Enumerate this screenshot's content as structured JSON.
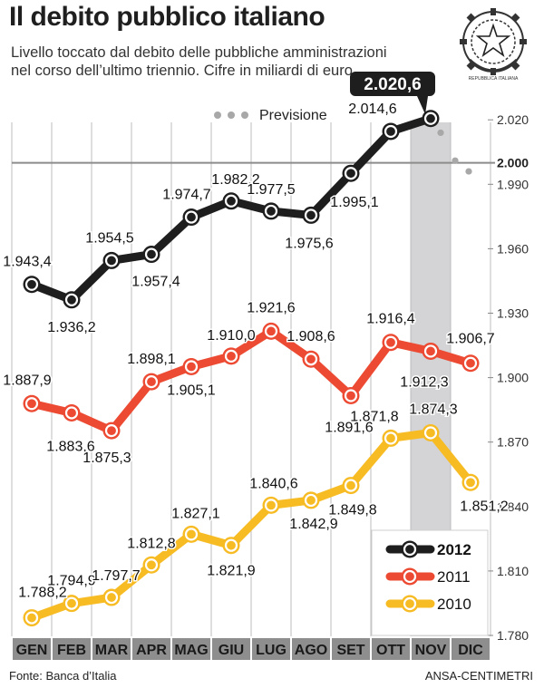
{
  "header": {
    "title": "Il debito pubblico italiano",
    "subtitle": "Livello toccato dal debito delle pubbliche amministrazioni nel corso dell’ultimo triennio. Cifre in miliardi di euro",
    "emblem_text": "REPUBBLICA ITALIANA"
  },
  "footer": {
    "source": "Fonte: Banca d’Italia",
    "credit": "ANSA-CENTIMETRI"
  },
  "chart_data": {
    "type": "line",
    "title": "Il debito pubblico italiano",
    "ylabel": "",
    "xlabel": "",
    "categories": [
      "GEN",
      "FEB",
      "MAR",
      "APR",
      "MAG",
      "GIU",
      "LUG",
      "AGO",
      "SET",
      "OTT",
      "NOV",
      "DIC"
    ],
    "y_ticks": [
      1780,
      1810,
      1840,
      1870,
      1900,
      1930,
      1960,
      1990,
      2020
    ],
    "y_tick_labels": [
      "1.780",
      "1.810",
      "1.840",
      "1.870",
      "1.900",
      "1.930",
      "1.960",
      "1.990",
      "2.020"
    ],
    "reference_line": {
      "value": 2000,
      "label": "2.000"
    },
    "highlight_month": "NOV",
    "forecast": {
      "label": "Previsione",
      "points": [
        2014.0,
        2001.0,
        1996.0
      ]
    },
    "series": [
      {
        "name": "2012",
        "color": "#1e1e1e",
        "values": [
          1943.4,
          1936.2,
          1954.5,
          1957.4,
          1974.7,
          1982.2,
          1977.5,
          1975.6,
          1995.1,
          2014.6,
          2020.6,
          null
        ],
        "labels": [
          "1.943,4",
          "1.936,2",
          "1.954,5",
          "1.957,4",
          "1.974,7",
          "1.982,2",
          "1.977,5",
          "1.975,6",
          "1.995,1",
          "2.014,6",
          "2.020,6",
          ""
        ]
      },
      {
        "name": "2011",
        "color": "#ec4a32",
        "values": [
          1887.9,
          1883.6,
          1875.3,
          1898.1,
          1905.1,
          1910.0,
          1921.6,
          1908.6,
          1891.6,
          1916.4,
          1912.3,
          1906.7
        ],
        "labels": [
          "1.887,9",
          "1.883,6",
          "1.875,3",
          "1.898,1",
          "1.905,1",
          "1.910,0",
          "1.921,6",
          "1.908,6",
          "1.891,6",
          "1.916,4",
          "1.912,3",
          "1.906,7"
        ]
      },
      {
        "name": "2010",
        "color": "#f7bb23",
        "values": [
          1788.2,
          1794.9,
          1797.7,
          1812.8,
          1827.1,
          1821.9,
          1840.6,
          1842.9,
          1849.8,
          1871.8,
          1874.3,
          1851.2
        ],
        "labels": [
          "1.788,2",
          "1.794,9",
          "1.797,7",
          "1.812,8",
          "1.827,1",
          "1.821,9",
          "1.840,6",
          "1.842,9",
          "1.849,8",
          "1.871,8",
          "1.874,3",
          "1.851,2"
        ]
      }
    ],
    "legend_position": "bottom-right",
    "grid": "vertical"
  }
}
